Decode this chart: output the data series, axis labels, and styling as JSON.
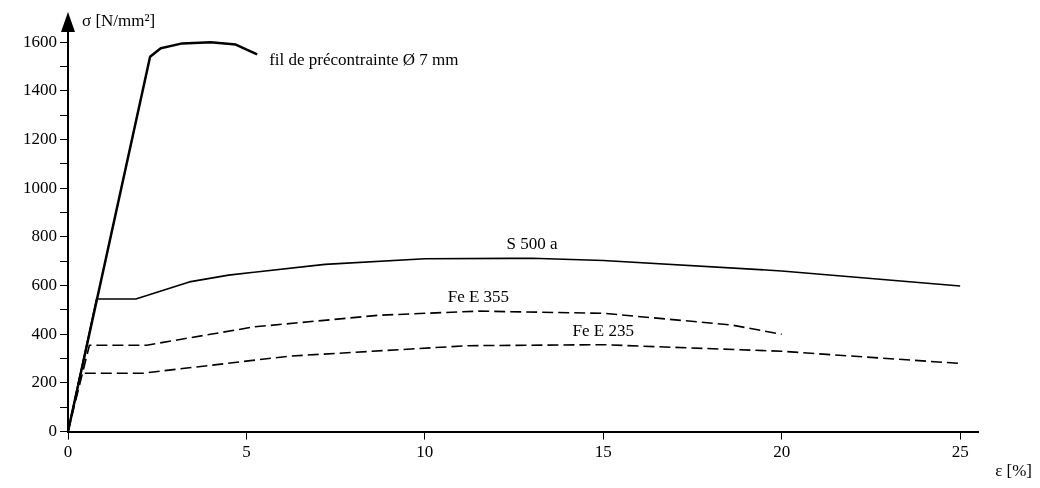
{
  "chart_data": {
    "type": "line",
    "xlabel": "ε [%]",
    "ylabel": "σ [N/mm²]",
    "xlim": [
      0,
      25.5
    ],
    "xticks": [
      0,
      5,
      10,
      15,
      20,
      25
    ],
    "ylim": [
      0,
      1650
    ],
    "yticks": [
      0,
      {
        "value": 100,
        "label": null
      },
      200,
      {
        "value": 300,
        "label": null
      },
      400,
      {
        "value": 500,
        "label": null
      },
      600,
      {
        "value": 700,
        "label": null
      },
      800,
      {
        "value": 900,
        "label": null
      },
      1000,
      {
        "value": 1100,
        "label": null
      },
      1200,
      {
        "value": 1300,
        "label": null
      },
      1400,
      {
        "value": 1500,
        "label": null
      },
      1600
    ],
    "grid": false,
    "legend": false,
    "marker": "none",
    "series": [
      {
        "name": "fil de précontrainte Ø 7 mm",
        "color": "#000000",
        "line_style": "solid",
        "x": [
          0,
          2.3,
          2.6,
          3.2,
          4,
          4.7,
          5.3
        ],
        "values": [
          0,
          1540,
          1575,
          1595,
          1600,
          1590,
          1550
        ]
      },
      {
        "name": "S 500 a",
        "color": "#000000",
        "line_style": "solid",
        "x": [
          0,
          0.8,
          1.9,
          3.4,
          4.5,
          7.2,
          10,
          13,
          15,
          20,
          25
        ],
        "values": [
          0,
          545,
          545,
          615,
          643,
          687,
          710,
          712,
          703,
          660,
          598
        ]
      },
      {
        "name": "Fe E 355",
        "color": "#000000",
        "line_style": "dashed",
        "x": [
          0,
          0.6,
          2.2,
          5.2,
          8.7,
          11.5,
          15,
          18.6,
          20
        ],
        "values": [
          0,
          355,
          355,
          430,
          478,
          495,
          486,
          438,
          400
        ]
      },
      {
        "name": "Fe E 235",
        "color": "#000000",
        "line_style": "dashed",
        "x": [
          0,
          0.35,
          2.1,
          6.2,
          11.2,
          15,
          20,
          25
        ],
        "values": [
          0,
          240,
          240,
          310,
          353,
          357,
          330,
          280
        ]
      }
    ]
  }
}
